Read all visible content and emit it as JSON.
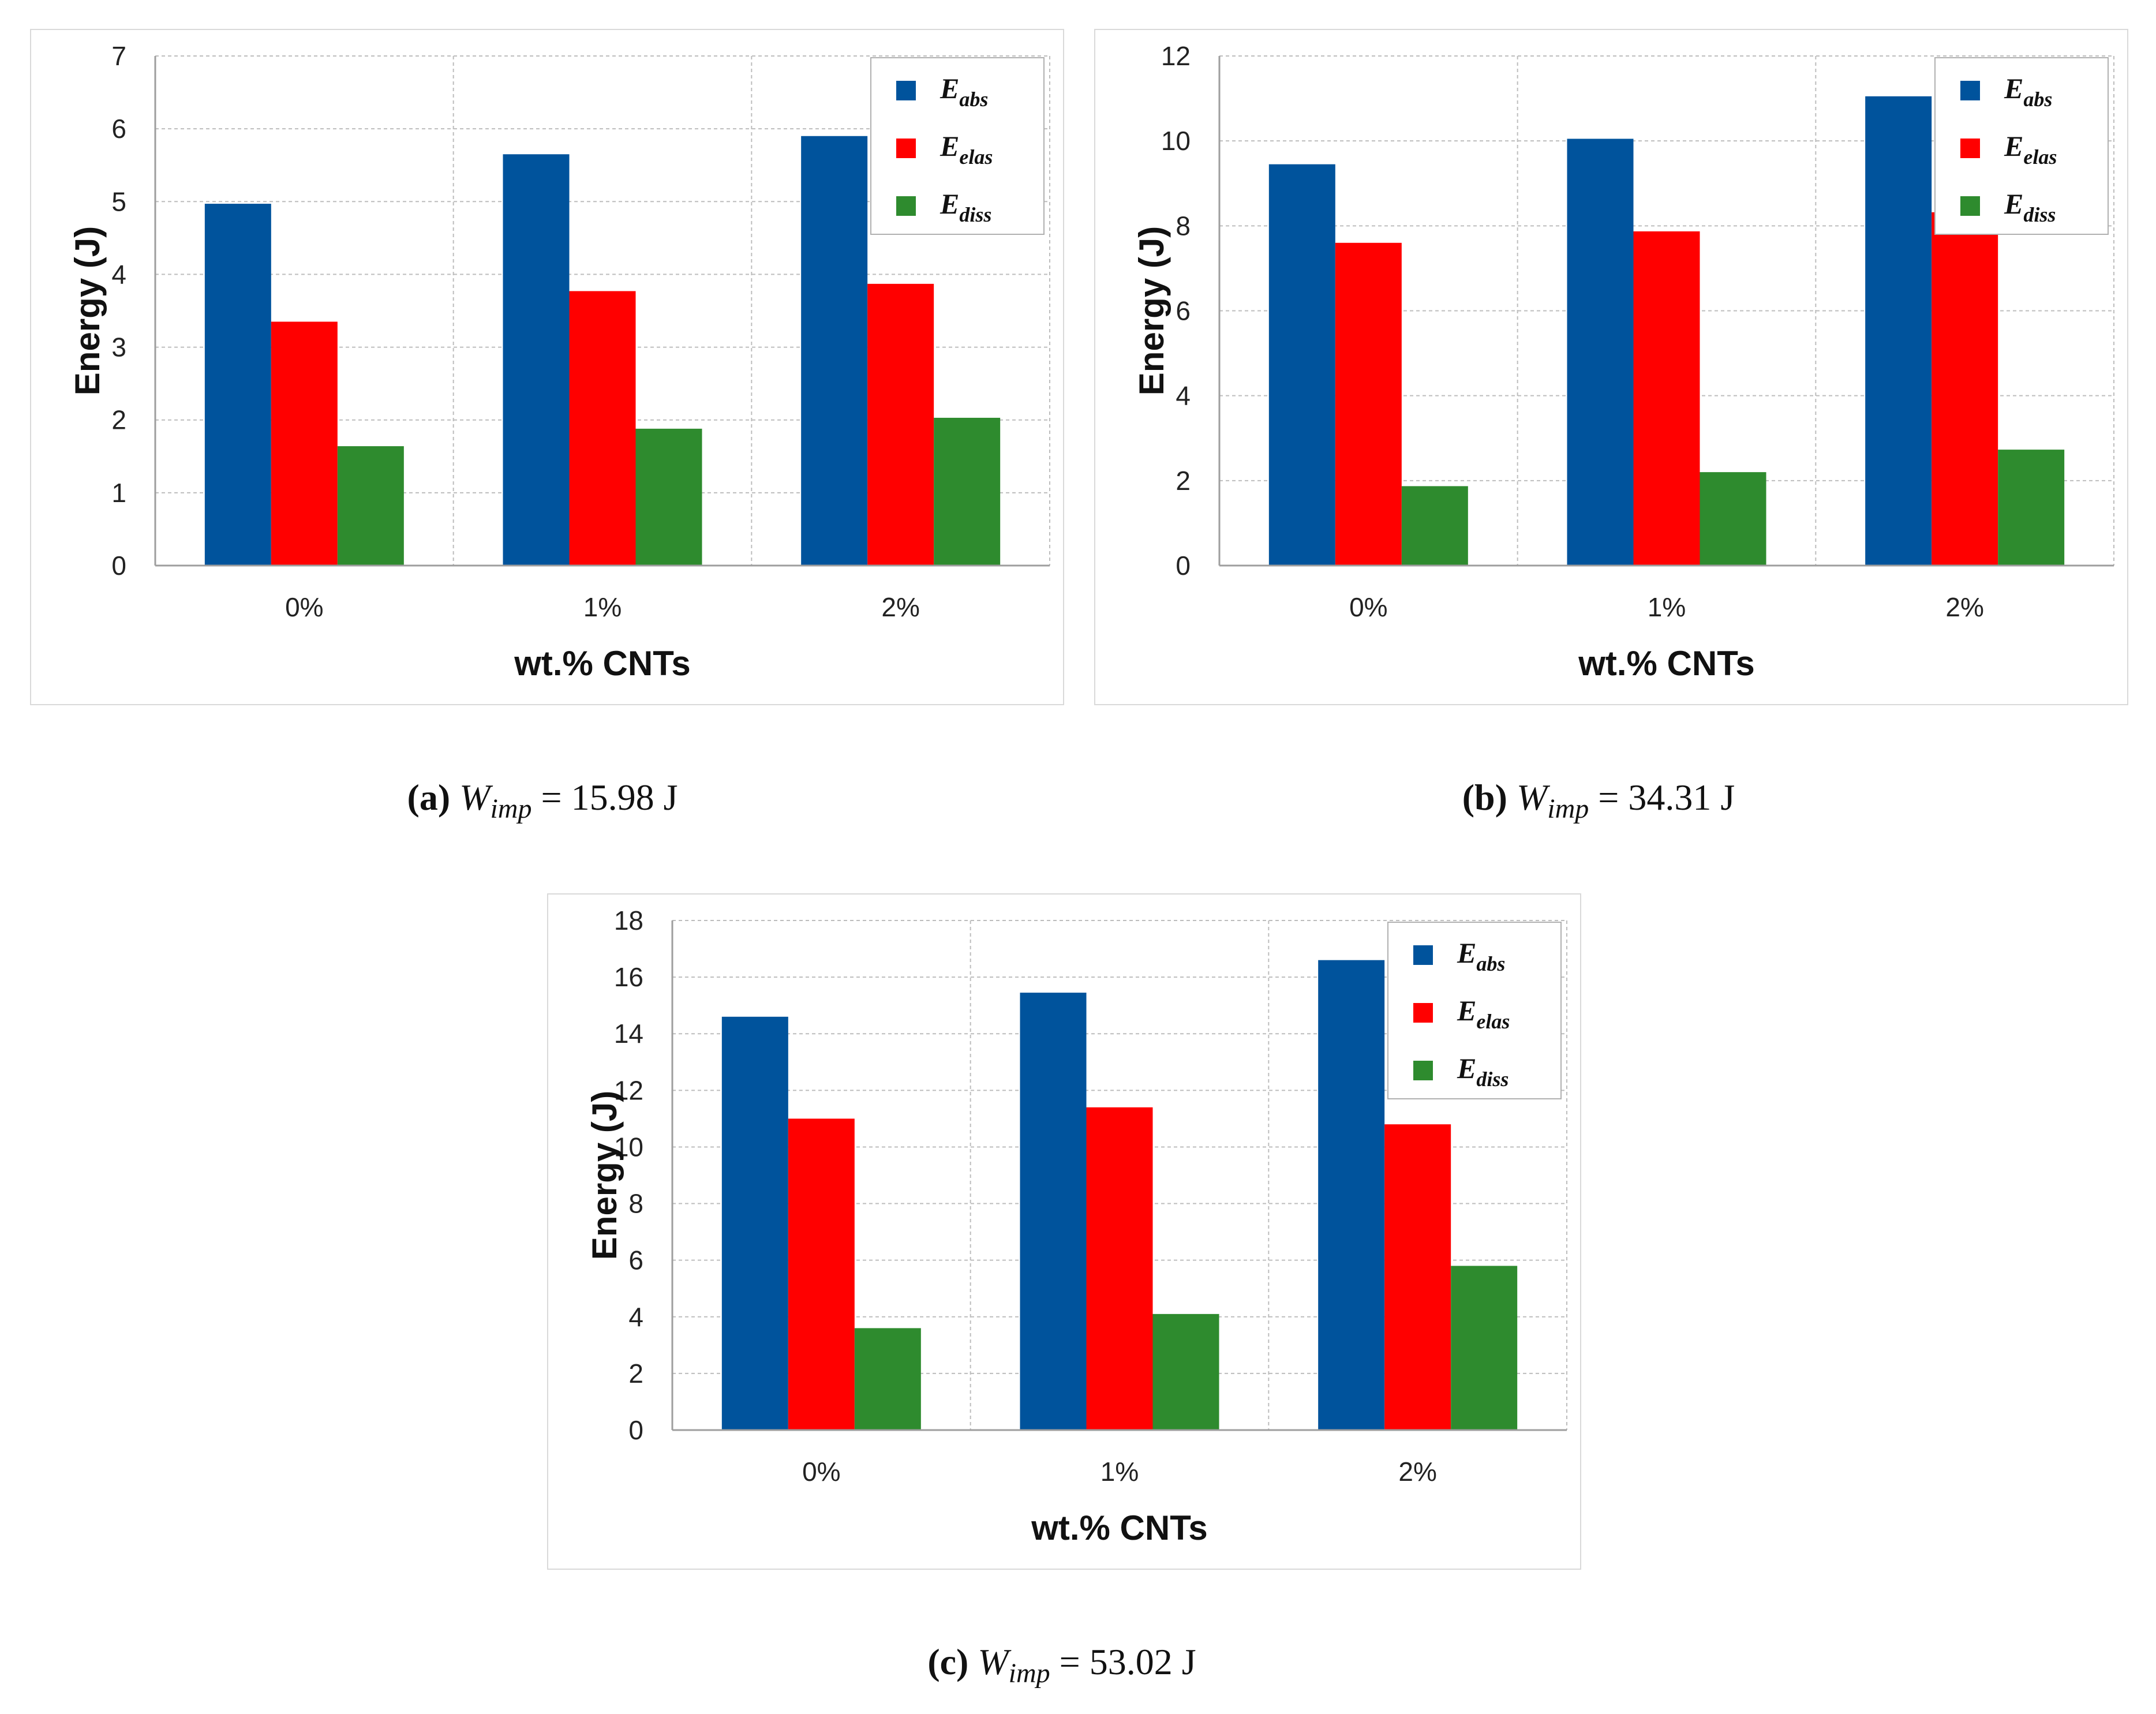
{
  "colors": {
    "abs": "#00539c",
    "elas": "#ff0000",
    "diss": "#2e8b2e",
    "grid": "#bdbdbd",
    "axis": "#9e9e9e"
  },
  "chart_data": [
    {
      "id": "a",
      "type": "bar",
      "categories": [
        "0%",
        "1%",
        "2%"
      ],
      "series": [
        {
          "key": "abs",
          "name": "E",
          "sub": "abs",
          "values": [
            4.97,
            5.65,
            5.9
          ]
        },
        {
          "key": "elas",
          "name": "E",
          "sub": "elas",
          "values": [
            3.35,
            3.77,
            3.87
          ]
        },
        {
          "key": "diss",
          "name": "E",
          "sub": "diss",
          "values": [
            1.64,
            1.88,
            2.03
          ]
        }
      ],
      "xlabel": "wt.% CNTs",
      "ylabel": "Energy (J)",
      "ylim": [
        0,
        7
      ],
      "yticks": [
        0,
        1,
        2,
        3,
        4,
        5,
        6,
        7
      ],
      "legend": "top-right",
      "caption": {
        "letter": "(a)",
        "symbol": "W",
        "sub": "imp",
        "value": " = 15.98 J"
      }
    },
    {
      "id": "b",
      "type": "bar",
      "categories": [
        "0%",
        "1%",
        "2%"
      ],
      "series": [
        {
          "key": "abs",
          "name": "E",
          "sub": "abs",
          "values": [
            9.45,
            10.05,
            11.05
          ]
        },
        {
          "key": "elas",
          "name": "E",
          "sub": "elas",
          "values": [
            7.6,
            7.87,
            8.32
          ]
        },
        {
          "key": "diss",
          "name": "E",
          "sub": "diss",
          "values": [
            1.87,
            2.2,
            2.73
          ]
        }
      ],
      "xlabel": "wt.% CNTs",
      "ylabel": "Energy (J)",
      "ylim": [
        0,
        12
      ],
      "yticks": [
        0,
        2,
        4,
        6,
        8,
        10,
        12
      ],
      "legend": "top-right",
      "caption": {
        "letter": "(b)",
        "symbol": "W",
        "sub": "imp",
        "value": " = 34.31 J"
      }
    },
    {
      "id": "c",
      "type": "bar",
      "categories": [
        "0%",
        "1%",
        "2%"
      ],
      "series": [
        {
          "key": "abs",
          "name": "E",
          "sub": "abs",
          "values": [
            14.6,
            15.45,
            16.6
          ]
        },
        {
          "key": "elas",
          "name": "E",
          "sub": "elas",
          "values": [
            11.0,
            11.4,
            10.8
          ]
        },
        {
          "key": "diss",
          "name": "E",
          "sub": "diss",
          "values": [
            3.6,
            4.1,
            5.8
          ]
        }
      ],
      "xlabel": "wt.% CNTs",
      "ylabel": "Energy (J)",
      "ylim": [
        0,
        18
      ],
      "yticks": [
        0,
        2,
        4,
        6,
        8,
        10,
        12,
        14,
        16,
        18
      ],
      "legend": "top-right",
      "caption": {
        "letter": "(c)",
        "symbol": "W",
        "sub": "imp",
        "value": " = 53.02 J"
      }
    }
  ]
}
